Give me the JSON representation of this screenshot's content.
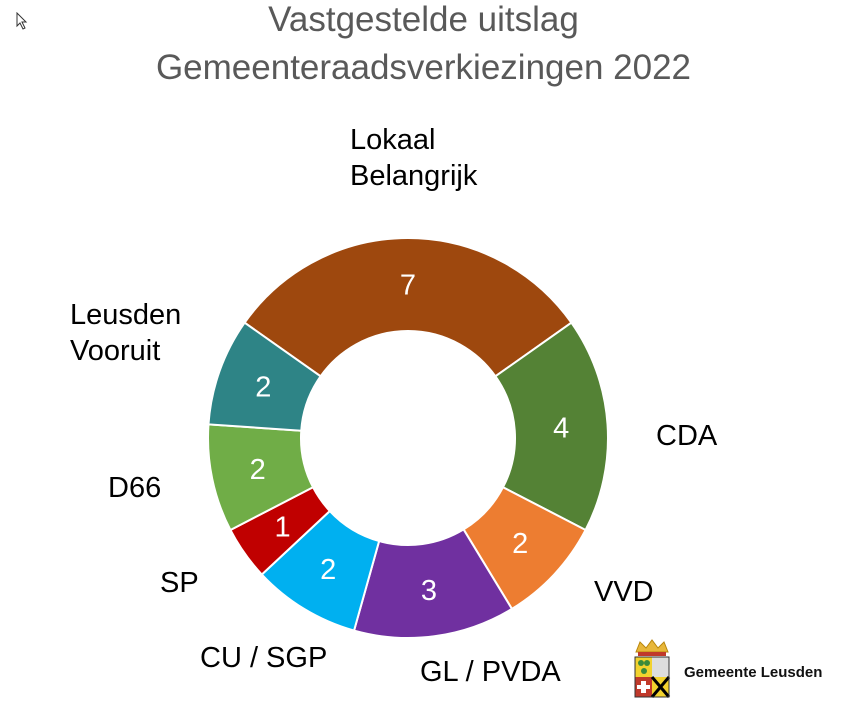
{
  "chart_data": {
    "type": "pie",
    "donut": true,
    "title": [
      "Vastgestelde uitslag",
      "Gemeenteraadsverkiezingen 2022"
    ],
    "categories": [
      "Lokaal Belangrijk",
      "CDA",
      "VVD",
      "GL / PVDA",
      "CU / SGP",
      "SP",
      "D66",
      "Leusden Vooruit"
    ],
    "labels_display": [
      "Lokaal\nBelangrijk",
      "CDA",
      "VVD",
      "GL / PVDA",
      "CU / SGP",
      "SP",
      "D66",
      "Leusden\nVooruit"
    ],
    "values": [
      7,
      4,
      2,
      3,
      2,
      1,
      2,
      2
    ],
    "colors": [
      "#9E480E",
      "#548235",
      "#ED7D31",
      "#7030A0",
      "#00B0F0",
      "#C00000",
      "#70AD47",
      "#2E8486"
    ],
    "legend": "none"
  },
  "logo": {
    "text": "Gemeente Leusden"
  }
}
